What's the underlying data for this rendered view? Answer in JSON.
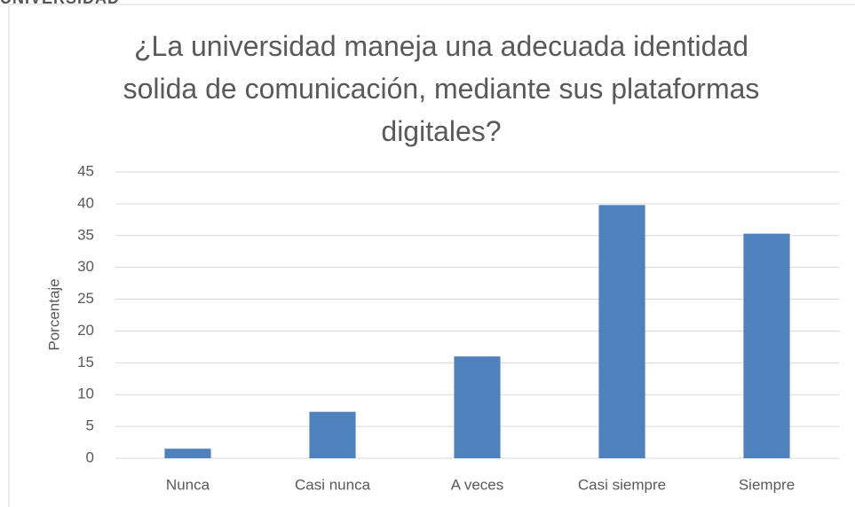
{
  "header": {
    "text": "UNIVERSIDAD"
  },
  "chart_data": {
    "type": "bar",
    "title": "¿La universidad maneja una adecuada identidad solida de comunicación, mediante sus plataformas digitales?",
    "y_label": "Porcentaje",
    "categories": [
      "Nunca",
      "Casi nunca",
      "A veces",
      "Casi siempre",
      "Siempre"
    ],
    "values": [
      1.5,
      7.3,
      16,
      39.8,
      35.3
    ],
    "color": "#4f81bd",
    "ylim": [
      0,
      45
    ],
    "yticks": [
      0,
      5,
      10,
      15,
      20,
      25,
      30,
      35,
      40,
      45
    ],
    "grid": true
  }
}
